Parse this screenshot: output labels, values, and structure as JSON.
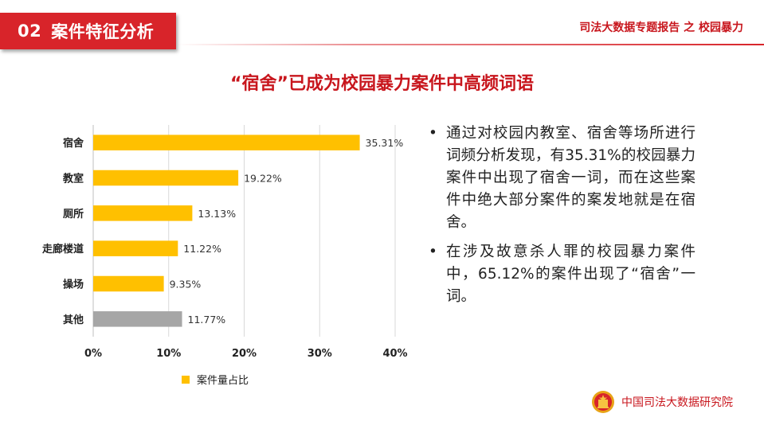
{
  "header": {
    "section_number": "02",
    "section_title": "案件特征分析",
    "report_title": "司法大数据专题报告 之 校园暴力"
  },
  "headline": "“宿舍”已成为校园暴力案件中高频词语",
  "chart_data": {
    "type": "bar",
    "orientation": "horizontal",
    "categories": [
      "宿舍",
      "教室",
      "厕所",
      "走廊楼道",
      "操场",
      "其他"
    ],
    "values": [
      35.31,
      19.22,
      13.13,
      11.22,
      9.35,
      11.77
    ],
    "data_labels": [
      "35.31%",
      "19.22%",
      "13.13%",
      "11.22%",
      "9.35%",
      "11.77%"
    ],
    "bar_colors": [
      "#ffc000",
      "#ffc000",
      "#ffc000",
      "#ffc000",
      "#ffc000",
      "#a6a6a6"
    ],
    "xlim": [
      0,
      40
    ],
    "x_ticks": [
      "0%",
      "10%",
      "20%",
      "30%",
      "40%"
    ],
    "grid": true,
    "legend": {
      "label": "案件量占比",
      "color": "#ffc000",
      "position": "bottom"
    }
  },
  "bullets": [
    "通过对校园内教室、宿舍等场所进行词频分析发现，有35.31%的校园暴力案件中出现了宿舍一词，而在这些案件中绝大部分案件的案发地就是在宿舍。",
    "在涉及故意杀人罪的校园暴力案件中，65.12%的案件出现了“宿舍”一词。"
  ],
  "footer": {
    "org_name": "中国司法大数据研究院"
  },
  "colors": {
    "brand_red": "#d8242a",
    "title_red": "#c8161d",
    "bar": "#ffc000",
    "bar_other": "#a6a6a6"
  },
  "icons": {
    "bullet": "•",
    "emblem": "court-emblem-icon"
  }
}
